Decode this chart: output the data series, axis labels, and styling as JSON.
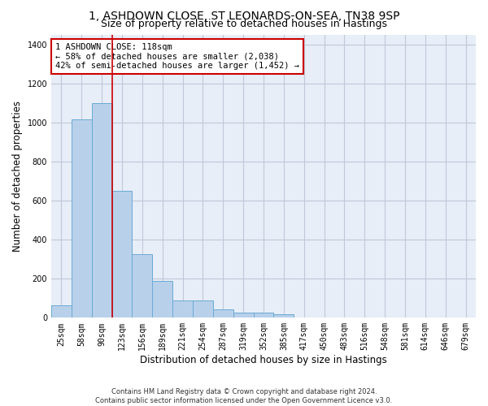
{
  "title_line1": "1, ASHDOWN CLOSE, ST LEONARDS-ON-SEA, TN38 9SP",
  "title_line2": "Size of property relative to detached houses in Hastings",
  "xlabel": "Distribution of detached houses by size in Hastings",
  "ylabel": "Number of detached properties",
  "footnote": "Contains HM Land Registry data © Crown copyright and database right 2024.\nContains public sector information licensed under the Open Government Licence v3.0.",
  "bar_labels": [
    "25sqm",
    "58sqm",
    "90sqm",
    "123sqm",
    "156sqm",
    "189sqm",
    "221sqm",
    "254sqm",
    "287sqm",
    "319sqm",
    "352sqm",
    "385sqm",
    "417sqm",
    "450sqm",
    "483sqm",
    "516sqm",
    "548sqm",
    "581sqm",
    "614sqm",
    "646sqm",
    "679sqm"
  ],
  "bar_values": [
    62,
    1015,
    1100,
    650,
    325,
    190,
    88,
    88,
    45,
    28,
    25,
    17,
    0,
    0,
    0,
    0,
    0,
    0,
    0,
    0,
    0
  ],
  "bar_color": "#b8d0ea",
  "bar_edge_color": "#6aaad4",
  "vline_color": "#cc0000",
  "vline_x_index": 2.5,
  "annotation_text": "1 ASHDOWN CLOSE: 118sqm\n← 58% of detached houses are smaller (2,038)\n42% of semi-detached houses are larger (1,452) →",
  "annotation_box_color": "#cc0000",
  "ylim": [
    0,
    1450
  ],
  "background_color": "#e8eef8",
  "grid_color": "#c0c8d8",
  "title_fontsize": 10,
  "subtitle_fontsize": 9,
  "axis_label_fontsize": 8.5,
  "tick_fontsize": 7,
  "annotation_fontsize": 7.5,
  "footnote_fontsize": 6
}
